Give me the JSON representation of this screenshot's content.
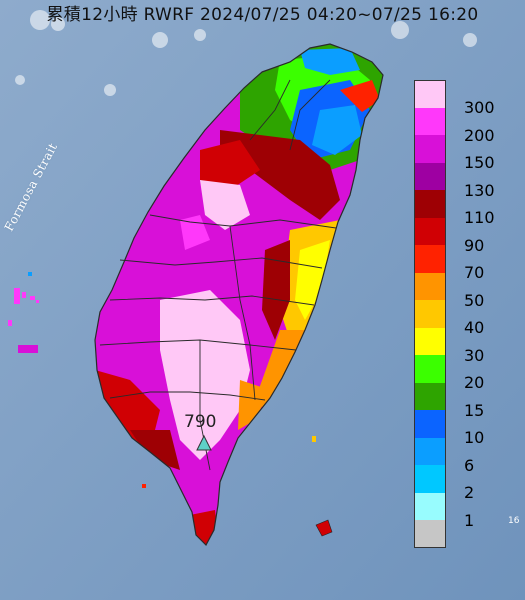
{
  "title": "累積12小時 RWRF 2024/07/25 04:20~07/25 16:20",
  "strait_label": "Formosa Strait",
  "max_station": {
    "value": "790",
    "marker": "triangle-marker-icon",
    "marker_color": "#5fd0c7"
  },
  "edge_number": "16",
  "legend": [
    {
      "label": "300",
      "color": "#ffc8f6"
    },
    {
      "label": "200",
      "color": "#ff38fa"
    },
    {
      "label": "150",
      "color": "#d810d8"
    },
    {
      "label": "130",
      "color": "#9e00a2"
    },
    {
      "label": "110",
      "color": "#9e0004"
    },
    {
      "label": "90",
      "color": "#d00004"
    },
    {
      "label": "70",
      "color": "#ff2200"
    },
    {
      "label": "50",
      "color": "#ff9400"
    },
    {
      "label": "40",
      "color": "#ffc800"
    },
    {
      "label": "30",
      "color": "#ffff00"
    },
    {
      "label": "20",
      "color": "#3bff00"
    },
    {
      "label": "15",
      "color": "#2ea400"
    },
    {
      "label": "10",
      "color": "#0b64ff"
    },
    {
      "label": "6",
      "color": "#0b9eff"
    },
    {
      "label": "2",
      "color": "#00c8ff"
    },
    {
      "label": "1",
      "color": "#98fcfe"
    },
    {
      "label": "",
      "color": "#c6c6c6"
    }
  ],
  "colors": {
    "sea": "#7d9fc4",
    "land_base": "#c6c6c6",
    "boundary": "#2a2a2a"
  }
}
